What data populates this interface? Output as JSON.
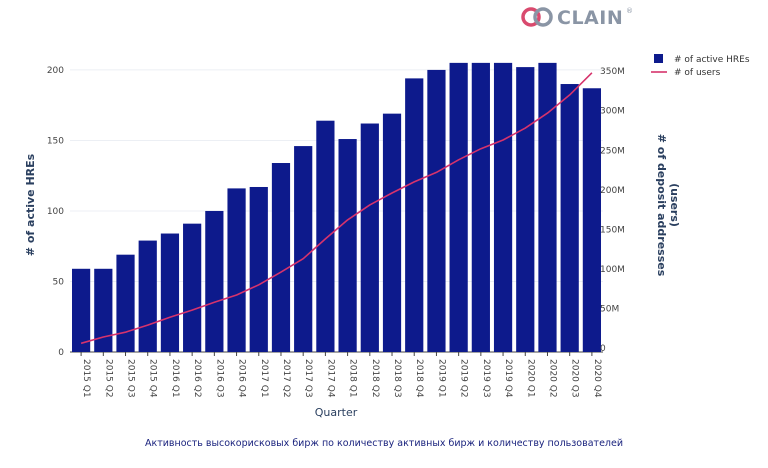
{
  "logo": {
    "text": "CLAIN",
    "mark": "®",
    "colors": {
      "ring_left": "#d94a6e",
      "ring_right": "#8a95a5",
      "text": "#8a95a5"
    }
  },
  "caption": "Активность высокорисковых бирж по количеству активных бирж и количеству пользователей",
  "chart_data": {
    "type": "bar",
    "categories": [
      "2015 Q1",
      "2015 Q2",
      "2015 Q3",
      "2015 Q4",
      "2016 Q1",
      "2016 Q2",
      "2016 Q3",
      "2016 Q4",
      "2017 Q1",
      "2017 Q2",
      "2017 Q3",
      "2017 Q4",
      "2018 Q1",
      "2018 Q2",
      "2018 Q3",
      "2018 Q4",
      "2019 Q1",
      "2019 Q2",
      "2019 Q3",
      "2019 Q4",
      "2020 Q1",
      "2020 Q2",
      "2020 Q3",
      "2020 Q4"
    ],
    "xlabel": "Quarter",
    "ylabel": "# of active HREs",
    "y2label_lines": [
      "# of deposit addresses",
      "(users)"
    ],
    "ylim": [
      0,
      212
    ],
    "y2lim": [
      -5000000,
      373000000
    ],
    "yticks": [
      0,
      50,
      100,
      150,
      200
    ],
    "y2ticks": [
      {
        "value": 0,
        "label": "0"
      },
      {
        "value": 50000000,
        "label": "50M"
      },
      {
        "value": 100000000,
        "label": "100M"
      },
      {
        "value": 150000000,
        "label": "150M"
      },
      {
        "value": 200000000,
        "label": "200M"
      },
      {
        "value": 250000000,
        "label": "250M"
      },
      {
        "value": 300000000,
        "label": "300M"
      },
      {
        "value": 350000000,
        "label": "350M"
      }
    ],
    "grid": true,
    "legend_position": "top-right",
    "series": [
      {
        "name": "# of active HREs",
        "kind": "bar",
        "axis": "left",
        "color": "#0d1a8c",
        "values": [
          59,
          59,
          69,
          79,
          84,
          91,
          100,
          116,
          117,
          134,
          146,
          164,
          151,
          162,
          169,
          194,
          200,
          205,
          205,
          205,
          202,
          205,
          190,
          187
        ]
      },
      {
        "name": "# of users",
        "kind": "line",
        "axis": "right",
        "color": "#d6336c",
        "values": [
          6000000,
          14000000,
          20000000,
          29000000,
          39000000,
          48000000,
          58000000,
          67000000,
          80000000,
          96000000,
          113000000,
          138000000,
          162000000,
          181000000,
          196000000,
          210000000,
          222000000,
          238000000,
          252000000,
          263000000,
          278000000,
          297000000,
          320000000,
          348000000
        ]
      }
    ]
  }
}
